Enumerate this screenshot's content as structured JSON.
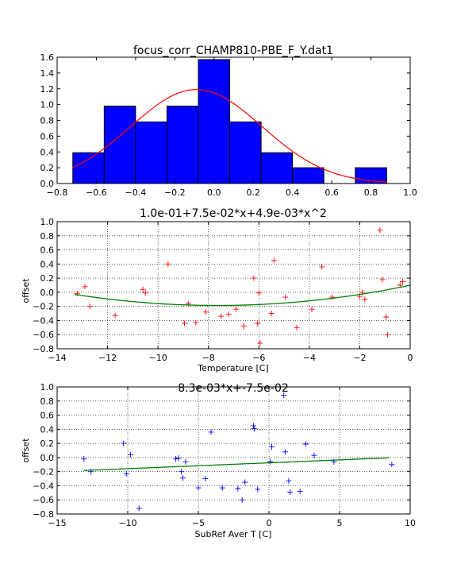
{
  "chart_data": [
    {
      "type": "bar",
      "title": "focus_corr_CHAMP810-PBE_F_Y.dat1",
      "xlabel": "",
      "ylabel": "",
      "xlim": [
        -0.8,
        1.0
      ],
      "ylim": [
        0.0,
        1.6
      ],
      "xticks": [
        "−0.8",
        "−0.6",
        "−0.4",
        "−0.2",
        "0.0",
        "0.2",
        "0.4",
        "0.6",
        "0.8",
        "1.0"
      ],
      "yticks": [
        "0.0",
        "0.2",
        "0.4",
        "0.6",
        "0.8",
        "1.0",
        "1.2",
        "1.4",
        "1.6"
      ],
      "grid": false,
      "bar_color": "#0000ff",
      "bins": [
        {
          "x0": -0.72,
          "x1": -0.56,
          "value": 0.39
        },
        {
          "x0": -0.56,
          "x1": -0.4,
          "value": 0.98
        },
        {
          "x0": -0.4,
          "x1": -0.24,
          "value": 0.78
        },
        {
          "x0": -0.24,
          "x1": -0.08,
          "value": 0.98
        },
        {
          "x0": -0.08,
          "x1": 0.08,
          "value": 1.57
        },
        {
          "x0": 0.08,
          "x1": 0.24,
          "value": 0.78
        },
        {
          "x0": 0.24,
          "x1": 0.4,
          "value": 0.39
        },
        {
          "x0": 0.4,
          "x1": 0.56,
          "value": 0.2
        },
        {
          "x0": 0.56,
          "x1": 0.72,
          "value": 0.0
        },
        {
          "x0": 0.72,
          "x1": 0.88,
          "value": 0.2
        }
      ],
      "fit_curve": {
        "color": "#ff0000",
        "mu": -0.09,
        "sigma": 0.335,
        "peak": 1.19,
        "x_range": [
          -0.72,
          0.88
        ]
      }
    },
    {
      "type": "scatter",
      "title": "1.0e-01+7.5e-02*x+4.9e-03*x^2",
      "xlabel": "Temperature [C]",
      "ylabel": "offset",
      "xlim": [
        -14,
        0
      ],
      "ylim": [
        -0.8,
        1.0
      ],
      "xticks": [
        "−14",
        "−12",
        "−10",
        "−8",
        "−6",
        "−4",
        "−2",
        "0"
      ],
      "yticks": [
        "−0.8",
        "−0.6",
        "−0.4",
        "−0.2",
        "0.0",
        "0.2",
        "0.4",
        "0.6",
        "0.8",
        "1.0"
      ],
      "grid": true,
      "marker_color": "#ff0000",
      "marker": "+",
      "points": [
        [
          -13.2,
          -0.02
        ],
        [
          -12.9,
          0.08
        ],
        [
          -12.7,
          -0.2
        ],
        [
          -11.7,
          -0.33
        ],
        [
          -10.6,
          0.04
        ],
        [
          -10.5,
          -0.01
        ],
        [
          -9.6,
          0.4
        ],
        [
          -8.8,
          -0.16
        ],
        [
          -8.95,
          -0.44
        ],
        [
          -8.5,
          -0.43
        ],
        [
          -8.1,
          -0.28
        ],
        [
          -7.5,
          -0.34
        ],
        [
          -7.2,
          -0.31
        ],
        [
          -6.9,
          -0.24
        ],
        [
          -6.6,
          -0.48
        ],
        [
          -6.2,
          0.2
        ],
        [
          -6.05,
          -0.44
        ],
        [
          -6.0,
          -0.01
        ],
        [
          -5.95,
          -0.72
        ],
        [
          -5.5,
          -0.3
        ],
        [
          -5.4,
          0.45
        ],
        [
          -4.95,
          -0.07
        ],
        [
          -4.5,
          -0.5
        ],
        [
          -3.9,
          -0.24
        ],
        [
          -3.5,
          0.36
        ],
        [
          -3.1,
          -0.07
        ],
        [
          -2.0,
          -0.06
        ],
        [
          -1.9,
          0.0
        ],
        [
          -1.8,
          -0.1
        ],
        [
          -1.2,
          0.88
        ],
        [
          -1.1,
          0.18
        ],
        [
          -0.95,
          -0.35
        ],
        [
          -0.9,
          -0.6
        ],
        [
          -0.3,
          0.15
        ],
        [
          -0.4,
          0.1
        ]
      ],
      "fit": {
        "color": "#008000",
        "expression": "1.0e-01+7.5e-02*x+4.9e-03*x^2",
        "a": 0.1,
        "b": 0.075,
        "c": 0.0049,
        "x_range": [
          -13.3,
          0
        ]
      }
    },
    {
      "type": "scatter",
      "title": "8.3e-03*x+-7.5e-02",
      "xlabel": "SubRef Aver T [C]",
      "ylabel": "offset",
      "xlim": [
        -15,
        10
      ],
      "ylim": [
        -0.8,
        1.0
      ],
      "xticks": [
        "−15",
        "−10",
        "−5",
        "0",
        "5",
        "10"
      ],
      "yticks": [
        "−0.8",
        "−0.6",
        "−0.4",
        "−0.2",
        "0.0",
        "0.2",
        "0.4",
        "0.6",
        "0.8",
        "1.0"
      ],
      "grid": true,
      "marker_color": "#0000ff",
      "marker": "+",
      "points": [
        [
          -13.1,
          -0.02
        ],
        [
          -12.6,
          -0.2
        ],
        [
          -10.3,
          0.2
        ],
        [
          -10.1,
          -0.23
        ],
        [
          -9.8,
          0.04
        ],
        [
          -9.2,
          -0.72
        ],
        [
          -6.6,
          -0.02
        ],
        [
          -6.4,
          -0.01
        ],
        [
          -6.2,
          -0.2
        ],
        [
          -6.1,
          -0.29
        ],
        [
          -5.9,
          -0.06
        ],
        [
          -5.0,
          -0.43
        ],
        [
          -4.5,
          -0.3
        ],
        [
          -4.1,
          0.36
        ],
        [
          -3.3,
          -0.43
        ],
        [
          -2.2,
          -0.44
        ],
        [
          -1.9,
          -0.6
        ],
        [
          -1.7,
          -0.35
        ],
        [
          -1.1,
          0.45
        ],
        [
          -1.05,
          0.41
        ],
        [
          -0.8,
          -0.45
        ],
        [
          0.1,
          -0.06
        ],
        [
          0.2,
          0.15
        ],
        [
          1.05,
          0.88
        ],
        [
          1.15,
          0.08
        ],
        [
          1.4,
          -0.33
        ],
        [
          1.5,
          -0.49
        ],
        [
          2.2,
          -0.48
        ],
        [
          2.6,
          0.19
        ],
        [
          3.2,
          0.03
        ],
        [
          4.6,
          -0.06
        ],
        [
          8.7,
          -0.1
        ]
      ],
      "fit": {
        "color": "#008000",
        "expression": "8.3e-03*x+-7.5e-02",
        "slope": 0.0083,
        "intercept": -0.075,
        "x_range": [
          -13.1,
          8.5
        ]
      }
    }
  ]
}
